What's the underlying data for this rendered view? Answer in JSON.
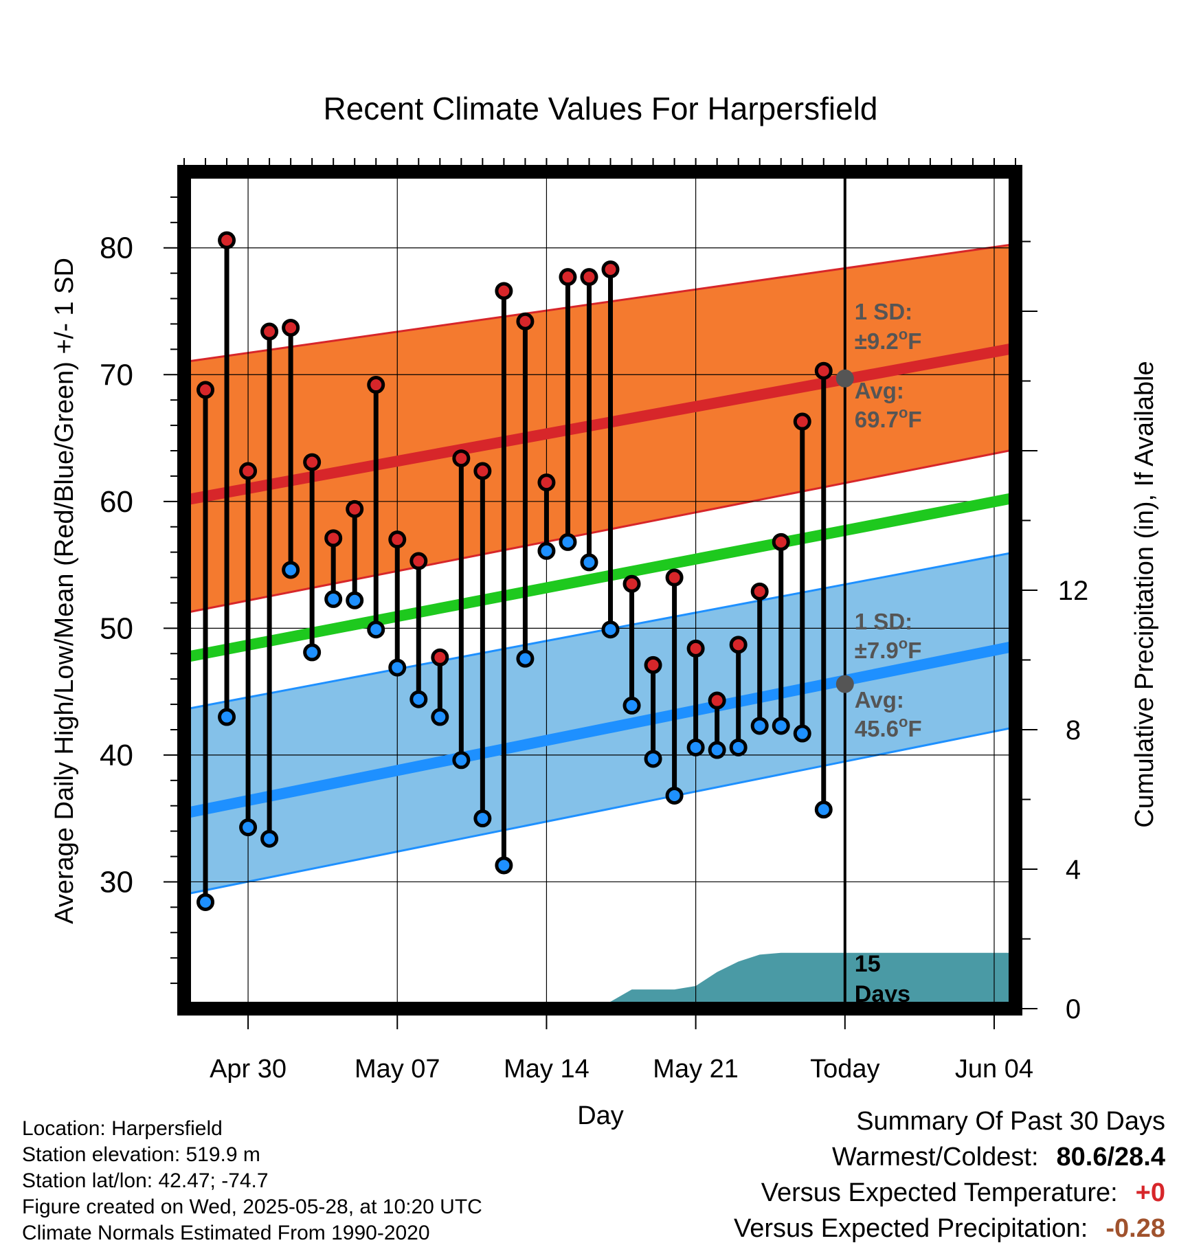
{
  "chart_data": {
    "type": "line",
    "title": "Recent Climate Values For Harpersfield",
    "xlabel": "Day",
    "ylabel": "Average Daily High/Low/Mean (Red/Blue/Green) +/- 1 SD",
    "y2label": "Cumulative Precipitation (in), If Available",
    "ylim": [
      20,
      86
    ],
    "y2lim": [
      0,
      24
    ],
    "yticks": [
      30,
      40,
      50,
      60,
      70,
      80
    ],
    "y2ticks": [
      0,
      4,
      8,
      12
    ],
    "x_axis": {
      "start": "Apr 27",
      "end": "Jun 05",
      "ticks": [
        {
          "date": "Apr 30",
          "label": "Apr 30"
        },
        {
          "date": "May 07",
          "label": "May 07"
        },
        {
          "date": "May 14",
          "label": "May 14"
        },
        {
          "date": "May 21",
          "label": "May 21"
        },
        {
          "date": "May 28",
          "label": "Today"
        },
        {
          "date": "Jun 04",
          "label": "Jun 04"
        }
      ]
    },
    "grid": true,
    "today": "May 28",
    "observations": {
      "dates": [
        "Apr 28",
        "Apr 29",
        "Apr 30",
        "May 01",
        "May 02",
        "May 03",
        "May 04",
        "May 05",
        "May 06",
        "May 07",
        "May 08",
        "May 09",
        "May 10",
        "May 11",
        "May 12",
        "May 13",
        "May 14",
        "May 15",
        "May 16",
        "May 17",
        "May 18",
        "May 19",
        "May 20",
        "May 21",
        "May 22",
        "May 23",
        "May 24",
        "May 25",
        "May 26",
        "May 27"
      ],
      "highs": [
        68.8,
        80.6,
        62.4,
        73.4,
        73.7,
        63.1,
        57.1,
        59.4,
        69.2,
        57.0,
        55.3,
        47.7,
        63.4,
        62.4,
        76.6,
        74.2,
        61.5,
        77.7,
        77.7,
        78.3,
        53.5,
        47.1,
        54.0,
        48.4,
        44.3,
        48.7,
        52.9,
        56.8,
        66.3,
        70.3
      ],
      "lows": [
        28.4,
        43.0,
        34.3,
        33.4,
        54.6,
        48.1,
        52.3,
        52.2,
        49.9,
        46.9,
        44.4,
        43.0,
        39.6,
        35.0,
        31.3,
        47.6,
        56.1,
        56.8,
        55.2,
        49.9,
        43.9,
        39.7,
        36.8,
        40.6,
        40.4,
        40.6,
        42.3,
        42.3,
        41.7,
        35.7
      ]
    },
    "normals": {
      "dates": [
        "Apr 27",
        "Jun 05"
      ],
      "high_avg": [
        60.1,
        72.1
      ],
      "high_upper": [
        71.0,
        80.3
      ],
      "high_lower": [
        51.2,
        64.1
      ],
      "mean_avg": [
        47.7,
        60.3
      ],
      "low_avg": [
        35.4,
        48.6
      ],
      "low_upper": [
        43.6,
        56.0
      ],
      "low_lower": [
        29.0,
        42.2
      ]
    },
    "precipitation": {
      "dates": [
        "May 16",
        "May 17",
        "May 18",
        "May 19",
        "May 20",
        "May 21",
        "May 22",
        "May 23",
        "May 24",
        "May 25",
        "May 26",
        "May 27",
        "May 28",
        "Jun 05"
      ],
      "cumulative": [
        0.0,
        0.2,
        0.55,
        0.55,
        0.55,
        0.65,
        1.05,
        1.35,
        1.55,
        1.6,
        1.6,
        1.6,
        1.6,
        1.6
      ]
    },
    "annotations": {
      "high_sd_label": "1 SD:",
      "high_sd_value": "±9.2",
      "high_avg_label": "Avg:",
      "high_avg_value": "69.7",
      "high_avg_point": 69.7,
      "low_sd_label": "1 SD:",
      "low_sd_value": "±7.9",
      "low_avg_label": "Avg:",
      "low_avg_value": "45.6",
      "low_avg_point": 45.6,
      "degree_unit": "o",
      "temp_unit": "F",
      "days_line1": "15",
      "days_line2": "Days"
    },
    "colors": {
      "high_band": "#f47a2f",
      "high_line": "#d7262a",
      "band_edge_high": "#d7262a",
      "mean_line": "#1ec91e",
      "low_band": "#84c1e9",
      "low_line": "#1e90ff",
      "band_edge_low": "#1e90ff",
      "precip": "#4a9aa5",
      "high_dot": "#d7262a",
      "low_dot": "#1e90ff",
      "avg_marker": "#555555",
      "annotation_text": "#555555"
    }
  },
  "meta": {
    "location": "Location: Harpersfield",
    "elevation": "Station elevation: 519.9 m",
    "latlon": "Station lat/lon: 42.47; -74.7",
    "created": "Figure created on Wed, 2025-05-28, at 10:20 UTC",
    "normals": "Climate Normals Estimated From 1990-2020"
  },
  "summary": {
    "title": "Summary Of Past 30 Days",
    "warm_cold_label": "Warmest/Coldest:",
    "warm_cold_value": "80.6/28.4",
    "temp_label": "Versus Expected Temperature:",
    "temp_value": "+0",
    "temp_color": "#d7262a",
    "precip_label": "Versus Expected Precipitation:",
    "precip_value": "-0.28",
    "precip_color": "#a0522d"
  }
}
